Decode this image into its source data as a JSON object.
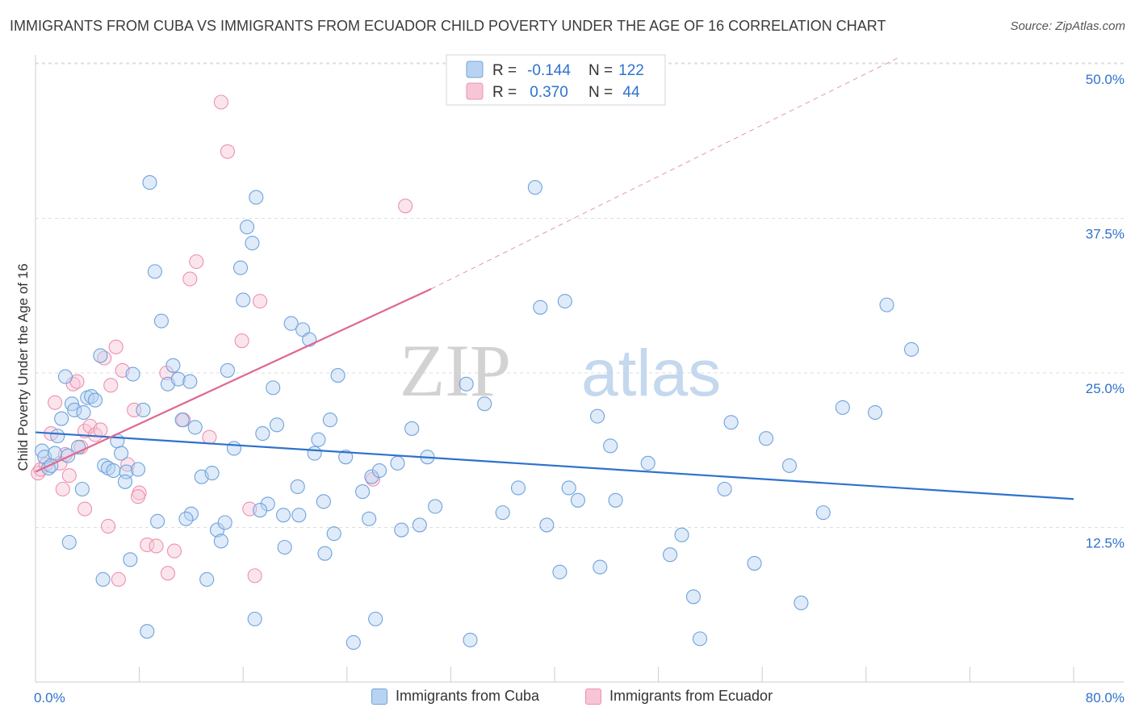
{
  "title": "IMMIGRANTS FROM CUBA VS IMMIGRANTS FROM ECUADOR CHILD POVERTY UNDER THE AGE OF 16 CORRELATION CHART",
  "source": "Source: ZipAtlas.com",
  "watermark": {
    "zip": "ZIP",
    "atlas": "atlas"
  },
  "colors": {
    "cuba": "#6fa3dc",
    "cuba_fill": "#b8d3f2",
    "ecuador": "#ee90b0",
    "ecuador_fill": "#f7c6d6",
    "cuba_line": "#2e72cc",
    "ecuador_line": "#e0678f",
    "value_text": "#2e72cc"
  },
  "legend_top": [
    {
      "series": "cuba",
      "r_label": "R =",
      "r_value": "-0.144",
      "n_label": "N =",
      "n_value": "122"
    },
    {
      "series": "ecuador",
      "r_label": "R =",
      "r_value": "0.370",
      "n_label": "N =",
      "n_value": "44"
    }
  ],
  "legend_bottom": [
    {
      "series": "cuba",
      "label": "Immigrants from Cuba"
    },
    {
      "series": "ecuador",
      "label": "Immigrants from Ecuador"
    }
  ],
  "chart_data": {
    "type": "scatter",
    "title": "IMMIGRANTS FROM CUBA VS IMMIGRANTS FROM ECUADOR CHILD POVERTY UNDER THE AGE OF 16 CORRELATION CHART",
    "xlabel": "",
    "ylabel": "Child Poverty Under the Age of 16",
    "xlim": [
      0,
      80
    ],
    "ylim": [
      0,
      50
    ],
    "x_tick_labels": [
      "0.0%",
      "80.0%"
    ],
    "y_ticks": [
      12.5,
      25.0,
      37.5,
      50.0
    ],
    "y_tick_labels": [
      "12.5%",
      "25.0%",
      "37.5%",
      "50.0%"
    ],
    "grid": true,
    "legend_position": "top-center",
    "series": [
      {
        "name": "Immigrants from Cuba",
        "key": "cuba",
        "trend": {
          "x": [
            0,
            80
          ],
          "y": [
            20.2,
            14.8
          ]
        },
        "points": [
          [
            0.5,
            18.7
          ],
          [
            0.7,
            18.2
          ],
          [
            1.0,
            17.3
          ],
          [
            1.2,
            17.5
          ],
          [
            1.5,
            18.5
          ],
          [
            1.7,
            19.9
          ],
          [
            2.0,
            21.3
          ],
          [
            2.3,
            24.7
          ],
          [
            2.5,
            18.3
          ],
          [
            2.8,
            22.5
          ],
          [
            3.0,
            22.0
          ],
          [
            3.3,
            19.0
          ],
          [
            3.7,
            21.8
          ],
          [
            4.0,
            23.0
          ],
          [
            4.3,
            23.1
          ],
          [
            4.6,
            22.8
          ],
          [
            5.0,
            26.4
          ],
          [
            5.3,
            17.5
          ],
          [
            5.6,
            17.3
          ],
          [
            6.0,
            17.1
          ],
          [
            6.3,
            19.5
          ],
          [
            6.6,
            18.5
          ],
          [
            7.0,
            17.0
          ],
          [
            7.5,
            24.9
          ],
          [
            7.9,
            17.2
          ],
          [
            8.3,
            22.0
          ],
          [
            8.8,
            40.4
          ],
          [
            9.2,
            33.2
          ],
          [
            9.7,
            29.2
          ],
          [
            10.2,
            24.1
          ],
          [
            10.6,
            25.6
          ],
          [
            11.0,
            24.5
          ],
          [
            11.3,
            21.2
          ],
          [
            11.9,
            24.3
          ],
          [
            12.3,
            20.6
          ],
          [
            12.8,
            16.6
          ],
          [
            13.2,
            8.3
          ],
          [
            13.6,
            16.9
          ],
          [
            14.0,
            12.3
          ],
          [
            14.3,
            11.4
          ],
          [
            14.8,
            25.2
          ],
          [
            15.3,
            18.9
          ],
          [
            15.8,
            33.5
          ],
          [
            16.0,
            30.9
          ],
          [
            16.3,
            36.8
          ],
          [
            16.7,
            35.5
          ],
          [
            17.0,
            39.2
          ],
          [
            17.5,
            20.1
          ],
          [
            17.9,
            14.4
          ],
          [
            18.3,
            23.8
          ],
          [
            18.6,
            20.8
          ],
          [
            19.2,
            10.9
          ],
          [
            19.7,
            29.0
          ],
          [
            20.2,
            15.8
          ],
          [
            20.6,
            28.5
          ],
          [
            21.1,
            27.7
          ],
          [
            21.5,
            18.5
          ],
          [
            21.8,
            19.6
          ],
          [
            22.2,
            14.6
          ],
          [
            22.7,
            21.2
          ],
          [
            23.3,
            24.8
          ],
          [
            23.9,
            18.2
          ],
          [
            25.2,
            15.4
          ],
          [
            25.9,
            16.6
          ],
          [
            26.5,
            17.1
          ],
          [
            27.9,
            17.7
          ],
          [
            28.2,
            12.3
          ],
          [
            29.0,
            20.5
          ],
          [
            30.2,
            18.2
          ],
          [
            33.2,
            24.1
          ],
          [
            34.6,
            22.5
          ],
          [
            36.0,
            13.7
          ],
          [
            37.2,
            15.7
          ],
          [
            38.5,
            40.0
          ],
          [
            38.9,
            30.3
          ],
          [
            39.4,
            12.7
          ],
          [
            40.4,
            8.9
          ],
          [
            40.8,
            30.8
          ],
          [
            41.1,
            15.7
          ],
          [
            41.8,
            14.7
          ],
          [
            43.3,
            21.5
          ],
          [
            43.5,
            9.3
          ],
          [
            44.3,
            19.1
          ],
          [
            44.7,
            14.7
          ],
          [
            47.2,
            17.7
          ],
          [
            48.9,
            10.3
          ],
          [
            49.8,
            11.9
          ],
          [
            50.7,
            6.9
          ],
          [
            51.2,
            3.5
          ],
          [
            53.1,
            15.6
          ],
          [
            53.6,
            21.0
          ],
          [
            55.4,
            9.6
          ],
          [
            56.3,
            19.7
          ],
          [
            58.1,
            17.5
          ],
          [
            59.0,
            6.4
          ],
          [
            60.7,
            13.7
          ],
          [
            62.2,
            22.2
          ],
          [
            64.7,
            21.8
          ],
          [
            65.6,
            30.5
          ],
          [
            67.5,
            26.9
          ],
          [
            2.6,
            11.3
          ],
          [
            7.3,
            9.9
          ],
          [
            5.2,
            8.3
          ],
          [
            8.6,
            4.1
          ],
          [
            12.0,
            13.6
          ],
          [
            16.9,
            5.1
          ],
          [
            19.1,
            13.5
          ],
          [
            22.3,
            10.4
          ],
          [
            24.5,
            3.2
          ],
          [
            26.2,
            5.1
          ],
          [
            29.6,
            12.7
          ],
          [
            33.5,
            3.4
          ],
          [
            3.6,
            15.6
          ],
          [
            6.9,
            16.2
          ],
          [
            9.4,
            13.0
          ],
          [
            11.6,
            13.2
          ],
          [
            14.6,
            12.9
          ],
          [
            17.3,
            13.9
          ],
          [
            20.3,
            13.5
          ],
          [
            23.0,
            12.0
          ],
          [
            25.7,
            13.2
          ],
          [
            30.8,
            14.2
          ]
        ]
      },
      {
        "name": "Immigrants from Ecuador",
        "key": "ecuador",
        "trend": {
          "x": [
            0,
            30.5
          ],
          "y": [
            17.0,
            31.8
          ]
        },
        "trend_ext": {
          "x": [
            30.5,
            66.5
          ],
          "y": [
            31.8,
            50.5
          ]
        },
        "points": [
          [
            0.2,
            16.9
          ],
          [
            0.4,
            17.2
          ],
          [
            0.8,
            17.6
          ],
          [
            1.2,
            20.1
          ],
          [
            1.5,
            22.6
          ],
          [
            1.9,
            17.7
          ],
          [
            2.3,
            18.4
          ],
          [
            2.6,
            16.7
          ],
          [
            2.9,
            24.1
          ],
          [
            3.2,
            24.3
          ],
          [
            3.5,
            19.0
          ],
          [
            3.8,
            20.3
          ],
          [
            4.2,
            20.7
          ],
          [
            4.6,
            20.0
          ],
          [
            5.0,
            20.4
          ],
          [
            5.3,
            26.2
          ],
          [
            5.8,
            24.0
          ],
          [
            6.2,
            27.1
          ],
          [
            6.7,
            25.2
          ],
          [
            7.1,
            17.6
          ],
          [
            7.6,
            22.0
          ],
          [
            8.0,
            15.3
          ],
          [
            8.6,
            11.1
          ],
          [
            9.3,
            11.0
          ],
          [
            10.1,
            25.0
          ],
          [
            10.7,
            10.6
          ],
          [
            11.4,
            21.2
          ],
          [
            11.9,
            32.6
          ],
          [
            12.4,
            34.0
          ],
          [
            13.4,
            19.8
          ],
          [
            14.3,
            46.9
          ],
          [
            14.8,
            42.9
          ],
          [
            15.9,
            27.6
          ],
          [
            16.5,
            14.0
          ],
          [
            17.3,
            30.8
          ],
          [
            28.5,
            38.5
          ],
          [
            26.0,
            16.4
          ],
          [
            2.1,
            15.6
          ],
          [
            3.8,
            14.0
          ],
          [
            5.6,
            12.6
          ],
          [
            6.4,
            8.3
          ],
          [
            7.9,
            15.0
          ],
          [
            10.2,
            8.8
          ],
          [
            16.9,
            8.6
          ]
        ]
      }
    ]
  }
}
